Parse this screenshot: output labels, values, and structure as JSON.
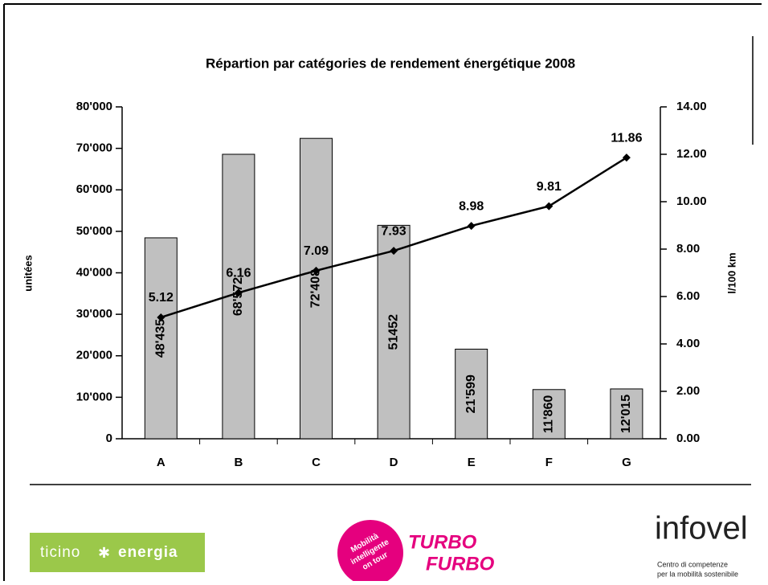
{
  "chart_data": {
    "type": "bar",
    "title": "Répartion par catégories de rendement énergétique 2008",
    "ylabel": "unitées",
    "y2label": "l/100 km",
    "categories": [
      "A",
      "B",
      "C",
      "D",
      "E",
      "F",
      "G"
    ],
    "series": [
      {
        "type": "bar",
        "color": "#c0c0c0",
        "values": [
          48435,
          68572,
          72408,
          51452,
          21599,
          11860,
          12015
        ],
        "value_labels": [
          "48'435",
          "68'572",
          "72'408",
          "51452",
          "21'599",
          "11'860",
          "12'015"
        ]
      },
      {
        "type": "line",
        "axis": "y2",
        "color": "#000000",
        "values": [
          5.12,
          6.16,
          7.09,
          7.93,
          8.98,
          9.81,
          11.86
        ]
      }
    ],
    "ylim": [
      0,
      80000
    ],
    "yticks": [
      0,
      {
        "value": 10000,
        "label": "10'000"
      },
      {
        "value": 20000,
        "label": "20'000"
      },
      {
        "value": 30000,
        "label": "30'000"
      },
      {
        "value": 40000,
        "label": "40'000"
      },
      {
        "value": 50000,
        "label": "50'000"
      },
      {
        "value": 60000,
        "label": "60'000"
      },
      {
        "value": 70000,
        "label": "70'000"
      },
      {
        "value": 80000,
        "label": "80'000"
      }
    ],
    "y2lim": [
      0,
      14
    ],
    "y2ticks": [
      {
        "value": 0,
        "label": "0.00"
      },
      {
        "value": 2,
        "label": "2.00"
      },
      {
        "value": 4,
        "label": "4.00"
      },
      {
        "value": 6,
        "label": "6.00"
      },
      {
        "value": 8,
        "label": "8.00"
      },
      {
        "value": 10,
        "label": "10.00"
      },
      {
        "value": 12,
        "label": "12.00"
      },
      {
        "value": 14,
        "label": "14.00"
      }
    ],
    "grid": false
  },
  "footer": {
    "ticino": {
      "word1": "ticino",
      "word2": "energia"
    },
    "turbo": {
      "badge": [
        "Mobilità",
        "intelligente",
        "on tour"
      ],
      "word1": "TURBO",
      "word2": "FURBO"
    },
    "infovel": {
      "name": "infovel",
      "tagline": [
        "Centro di competenze",
        "per la mobilità sostenibile"
      ]
    }
  }
}
